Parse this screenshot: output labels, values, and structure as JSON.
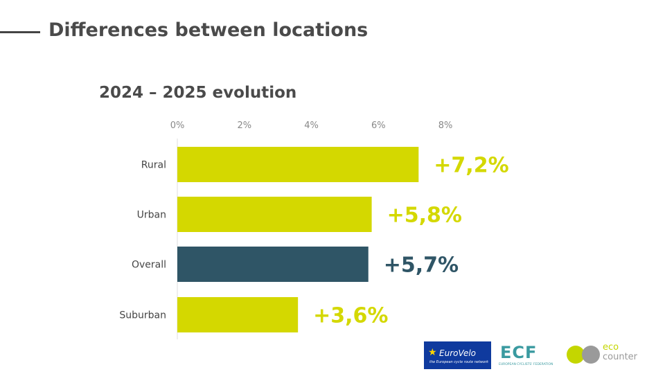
{
  "header": {
    "title": "Differences between locations"
  },
  "chart_data": {
    "type": "bar",
    "orientation": "horizontal",
    "title": "2024 – 2025 evolution",
    "categories": [
      "Rural",
      "Urban",
      "Overall",
      "Suburban"
    ],
    "values": [
      7.2,
      5.8,
      5.7,
      3.6
    ],
    "data_labels": [
      "+7,2%",
      "+5,8%",
      "+5,7%",
      "+3,6%"
    ],
    "colors": [
      "#d4d800",
      "#d4d800",
      "#2f5566",
      "#d4d800"
    ],
    "ticks": [
      0,
      2,
      4,
      6,
      8
    ],
    "tick_labels": [
      "0%",
      "2%",
      "4%",
      "6%",
      "8%"
    ],
    "xlim": [
      0,
      8
    ],
    "grid": false
  },
  "logos": {
    "eurovelo": "EuroVelo",
    "eurovelo_tagline": "the European cycle route network",
    "ecf": "ECF",
    "ecf_tagline": "EUROPEAN CYCLISTS' FEDERATION",
    "eco": "eco",
    "counter": "counter"
  }
}
